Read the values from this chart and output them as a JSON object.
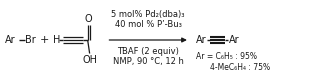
{
  "background_color": "#ffffff",
  "text_color": "#1a1a1a",
  "figsize": [
    3.32,
    0.8
  ],
  "dpi": 100,
  "above_arrow_line1": "5 mol% Pd₂(dba)₃",
  "above_arrow_line2": "40 mol % P’-Bu₃",
  "below_arrow_line1": "TBAF (2 equiv)",
  "below_arrow_line2": "NMP, 90 °C, 12 h",
  "yield_line1": "Ar = C₆H₅ : 95%",
  "yield_line2": "4-MeC₆H₄ : 75%"
}
